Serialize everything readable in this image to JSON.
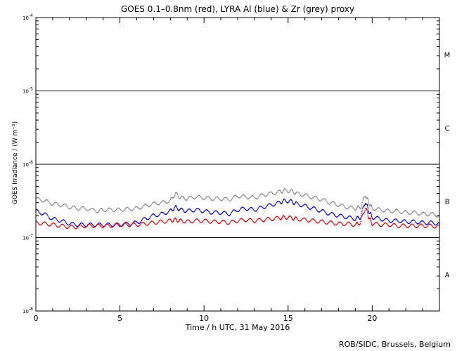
{
  "chart_data": {
    "type": "scatter",
    "title": "GOES 0.1–0.8nm (red), LYRA Al (blue) & Zr (grey) proxy",
    "xlabel": "Time / h UTC, 31 May 2016",
    "ylabel": "GOES Irradiance / (W m⁻²)",
    "xlim": [
      0,
      24
    ],
    "ylim": [
      1e-08,
      0.0001
    ],
    "yscale": "log",
    "x_ticks": [
      0,
      5,
      10,
      15,
      20
    ],
    "x_tick_labels": [
      "0",
      "5",
      "10",
      "15",
      "20"
    ],
    "y_ticks": [
      1e-08,
      1e-07,
      1e-06,
      1e-05,
      0.0001
    ],
    "y_tick_labels": [
      {
        "base": "10",
        "exp": "-8"
      },
      {
        "base": "10",
        "exp": "-7"
      },
      {
        "base": "10",
        "exp": "-6"
      },
      {
        "base": "10",
        "exp": "-5"
      },
      {
        "base": "10",
        "exp": "-4"
      }
    ],
    "flare_class_lines": [
      1e-07,
      1e-06,
      1e-05
    ],
    "flare_classes": [
      {
        "label": "A",
        "value": 3.16e-08
      },
      {
        "label": "B",
        "value": 3.16e-07
      },
      {
        "label": "C",
        "value": 3.16e-06
      },
      {
        "label": "M",
        "value": 3.16e-05
      }
    ],
    "grid": false,
    "series": [
      {
        "color": "#888888",
        "x": [
          0.0,
          0.5,
          1.0,
          1.5,
          2.0,
          2.5,
          3.0,
          3.6,
          4.0,
          4.5,
          5.0,
          5.5,
          6.0,
          6.5,
          7.0,
          7.5,
          8.0,
          8.3,
          8.6,
          9.0,
          9.5,
          10.0,
          10.5,
          11.0,
          11.5,
          12.0,
          12.5,
          13.0,
          13.5,
          14.0,
          14.5,
          14.8,
          15.2,
          15.5,
          16.0,
          16.5,
          17.0,
          17.5,
          18.0,
          18.5,
          19.0,
          19.3,
          19.6,
          19.8,
          20.0,
          20.5,
          21.0,
          21.5,
          22.0,
          22.5,
          23.0,
          23.5,
          24.0
        ],
        "y": [
          3.4e-07,
          3.2e-07,
          2.9e-07,
          2.8e-07,
          2.6e-07,
          2.5e-07,
          2.5e-07,
          2.3e-07,
          2.4e-07,
          2.4e-07,
          2.4e-07,
          2.45e-07,
          2.5e-07,
          2.7e-07,
          2.9e-07,
          3e-07,
          3.2e-07,
          4e-07,
          3.5e-07,
          3.4e-07,
          3.6e-07,
          3.5e-07,
          3.4e-07,
          3.4e-07,
          3.3e-07,
          3.7e-07,
          3.6e-07,
          3.5e-07,
          3.8e-07,
          4e-07,
          4.2e-07,
          4.4e-07,
          4.3e-07,
          4e-07,
          3.8e-07,
          3.5e-07,
          3.3e-07,
          3e-07,
          2.8e-07,
          2.6e-07,
          2.5e-07,
          2.6e-07,
          3.8e-07,
          3e-07,
          2.5e-07,
          2.4e-07,
          2.3e-07,
          2.3e-07,
          2.2e-07,
          2.2e-07,
          2.1e-07,
          2.1e-07,
          2e-07
        ]
      },
      {
        "color": "#0000dd",
        "x": [
          0.0,
          0.5,
          1.0,
          1.5,
          2.0,
          2.5,
          3.0,
          3.5,
          4.0,
          4.5,
          5.0,
          5.5,
          6.0,
          6.5,
          7.0,
          7.5,
          8.0,
          8.3,
          8.6,
          9.0,
          9.5,
          10.0,
          10.5,
          11.0,
          11.5,
          12.0,
          12.5,
          13.0,
          13.5,
          14.0,
          14.5,
          14.8,
          15.2,
          15.5,
          16.0,
          16.5,
          17.0,
          17.5,
          18.0,
          18.5,
          19.0,
          19.3,
          19.6,
          19.8,
          20.0,
          20.5,
          21.0,
          21.5,
          22.0,
          22.5,
          23.0,
          23.5,
          24.0
        ],
        "y": [
          2.3e-07,
          2.1e-07,
          1.8e-07,
          1.7e-07,
          1.55e-07,
          1.5e-07,
          1.5e-07,
          1.5e-07,
          1.5e-07,
          1.5e-07,
          1.5e-07,
          1.55e-07,
          1.6e-07,
          1.8e-07,
          2e-07,
          2.1e-07,
          2.3e-07,
          2.6e-07,
          2.4e-07,
          2.3e-07,
          2.4e-07,
          2.3e-07,
          2.2e-07,
          2.2e-07,
          2.1e-07,
          2.4e-07,
          2.5e-07,
          2.4e-07,
          2.6e-07,
          2.8e-07,
          3e-07,
          3.2e-07,
          3.1e-07,
          2.9e-07,
          2.7e-07,
          2.5e-07,
          2.3e-07,
          2.1e-07,
          2e-07,
          1.9e-07,
          1.8e-07,
          1.9e-07,
          3.1e-07,
          2.3e-07,
          1.9e-07,
          1.8e-07,
          1.7e-07,
          1.7e-07,
          1.65e-07,
          1.65e-07,
          1.6e-07,
          1.6e-07,
          1.55e-07
        ]
      },
      {
        "color": "#dd0000",
        "x": [
          0.0,
          0.5,
          1.0,
          1.5,
          2.0,
          2.5,
          3.0,
          3.5,
          4.0,
          4.5,
          5.0,
          5.5,
          6.0,
          6.5,
          7.0,
          7.5,
          8.0,
          8.3,
          8.6,
          9.0,
          9.5,
          10.0,
          10.5,
          11.0,
          11.5,
          12.0,
          12.5,
          13.0,
          13.5,
          14.0,
          14.5,
          14.8,
          15.2,
          15.5,
          16.0,
          16.5,
          17.0,
          17.5,
          18.0,
          18.5,
          19.0,
          19.3,
          19.6,
          19.8,
          20.0,
          20.5,
          21.0,
          21.5,
          22.0,
          22.5,
          23.0,
          23.5,
          24.0
        ],
        "y": [
          1.6e-07,
          1.55e-07,
          1.5e-07,
          1.45e-07,
          1.4e-07,
          1.4e-07,
          1.45e-07,
          1.45e-07,
          1.45e-07,
          1.45e-07,
          1.5e-07,
          1.5e-07,
          1.5e-07,
          1.55e-07,
          1.6e-07,
          1.65e-07,
          1.7e-07,
          1.75e-07,
          1.7e-07,
          1.65e-07,
          1.7e-07,
          1.7e-07,
          1.65e-07,
          1.65e-07,
          1.6e-07,
          1.7e-07,
          1.75e-07,
          1.7e-07,
          1.75e-07,
          1.8e-07,
          1.85e-07,
          1.9e-07,
          1.85e-07,
          1.8e-07,
          1.75e-07,
          1.7e-07,
          1.65e-07,
          1.6e-07,
          1.55e-07,
          1.55e-07,
          1.5e-07,
          1.6e-07,
          2.6e-07,
          1.9e-07,
          1.55e-07,
          1.5e-07,
          1.5e-07,
          1.45e-07,
          1.45e-07,
          1.45e-07,
          1.45e-07,
          1.45e-07,
          1.4e-07
        ]
      }
    ],
    "credit": "ROB/SIDC, Brussels, Belgium"
  }
}
